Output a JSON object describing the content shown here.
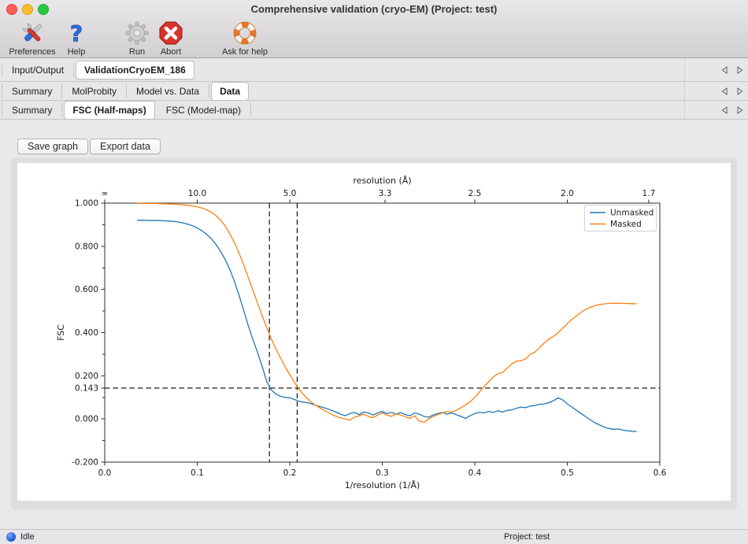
{
  "window": {
    "title": "Comprehensive validation (cryo-EM) (Project: test)"
  },
  "toolbar": {
    "preferences": "Preferences",
    "help": "Help",
    "run": "Run",
    "abort": "Abort",
    "ask_for_help": "Ask for help"
  },
  "tab_rows": [
    {
      "tabs": [
        {
          "label": "Input/Output",
          "selected": false
        },
        {
          "label": "ValidationCryoEM_186",
          "selected": true
        }
      ]
    },
    {
      "tabs": [
        {
          "label": "Summary",
          "selected": false
        },
        {
          "label": "MolProbity",
          "selected": false
        },
        {
          "label": "Model vs. Data",
          "selected": false
        },
        {
          "label": "Data",
          "selected": true
        }
      ]
    },
    {
      "tabs": [
        {
          "label": "Summary",
          "selected": false
        },
        {
          "label": "FSC (Half-maps)",
          "selected": true
        },
        {
          "label": "FSC (Model-map)",
          "selected": false
        }
      ]
    }
  ],
  "actions": {
    "save_graph": "Save graph",
    "export_data": "Export data"
  },
  "statusbar": {
    "status": "Idle",
    "project": "Project: test"
  },
  "chart_data": {
    "type": "line",
    "xlabel": "1/resolution (1/Å)",
    "ylabel": "FSC",
    "top_axis_label": "resolution (Å)",
    "xlim": [
      0.0,
      0.6
    ],
    "ylim": [
      -0.2,
      1.0
    ],
    "x_ticks": {
      "values": [
        0.0,
        0.1,
        0.2,
        0.3,
        0.4,
        0.5,
        0.6
      ],
      "labels": [
        "0.0",
        "0.1",
        "0.2",
        "0.3",
        "0.4",
        "0.5",
        "0.6"
      ]
    },
    "y_ticks": {
      "values": [
        1.0,
        0.8,
        0.6,
        0.4,
        0.2,
        0.143,
        0.0,
        -0.2
      ],
      "labels": [
        "1.000",
        "0.800",
        "0.600",
        "0.400",
        "0.200",
        "0.143",
        "0.000",
        "-0.200"
      ]
    },
    "y_minor_ticks": [
      0.9,
      0.7,
      0.5,
      0.3,
      0.1,
      -0.1
    ],
    "top_ticks": {
      "values": [
        0.0,
        0.1,
        0.2,
        0.303,
        0.4,
        0.5,
        0.588
      ],
      "labels": [
        "∞",
        "10.0",
        "5.0",
        "3.3",
        "2.5",
        "2.0",
        "1.7"
      ]
    },
    "threshold_fsc": 0.143,
    "threshold_vlines_x": [
      0.178,
      0.208
    ],
    "grid": false,
    "legend_position": "top-right",
    "x_start": 0.035,
    "x_step": 0.005,
    "series": [
      {
        "name": "Unmasked",
        "color": "#1f77b4",
        "y": [
          0.92,
          0.921,
          0.92,
          0.919,
          0.92,
          0.919,
          0.918,
          0.917,
          0.915,
          0.912,
          0.908,
          0.902,
          0.895,
          0.885,
          0.872,
          0.856,
          0.836,
          0.81,
          0.778,
          0.74,
          0.695,
          0.64,
          0.575,
          0.505,
          0.435,
          0.37,
          0.31,
          0.245,
          0.175,
          0.135,
          0.115,
          0.105,
          0.1,
          0.098,
          0.09,
          0.082,
          0.078,
          0.075,
          0.068,
          0.06,
          0.055,
          0.048,
          0.04,
          0.032,
          0.022,
          0.015,
          0.025,
          0.03,
          0.02,
          0.032,
          0.028,
          0.018,
          0.028,
          0.035,
          0.025,
          0.03,
          0.022,
          0.03,
          0.02,
          0.015,
          0.028,
          0.022,
          0.012,
          0.008,
          0.018,
          0.025,
          0.03,
          0.022,
          0.028,
          0.02,
          0.012,
          0.002,
          0.015,
          0.025,
          0.03,
          0.028,
          0.035,
          0.03,
          0.038,
          0.032,
          0.04,
          0.042,
          0.05,
          0.055,
          0.052,
          0.06,
          0.062,
          0.068,
          0.07,
          0.075,
          0.085,
          0.098,
          0.088,
          0.07,
          0.055,
          0.04,
          0.025,
          0.01,
          -0.005,
          -0.018,
          -0.028,
          -0.038,
          -0.044,
          -0.048,
          -0.046,
          -0.052,
          -0.055,
          -0.057,
          -0.058
        ]
      },
      {
        "name": "Masked",
        "color": "#ff7f0e",
        "y": [
          0.999,
          0.999,
          0.998,
          0.998,
          0.998,
          0.997,
          0.997,
          0.996,
          0.995,
          0.994,
          0.992,
          0.99,
          0.987,
          0.983,
          0.977,
          0.969,
          0.958,
          0.943,
          0.922,
          0.895,
          0.86,
          0.818,
          0.77,
          0.716,
          0.658,
          0.598,
          0.538,
          0.48,
          0.424,
          0.372,
          0.325,
          0.282,
          0.242,
          0.205,
          0.17,
          0.138,
          0.112,
          0.09,
          0.072,
          0.058,
          0.045,
          0.033,
          0.022,
          0.012,
          0.005,
          0.0,
          -0.005,
          0.008,
          0.015,
          0.022,
          0.012,
          0.006,
          0.018,
          0.028,
          0.018,
          0.012,
          0.025,
          0.018,
          0.01,
          0.002,
          0.015,
          -0.01,
          -0.015,
          0.0,
          0.012,
          0.02,
          0.028,
          0.035,
          0.03,
          0.04,
          0.052,
          0.065,
          0.08,
          0.1,
          0.125,
          0.15,
          0.172,
          0.195,
          0.21,
          0.215,
          0.235,
          0.255,
          0.268,
          0.27,
          0.278,
          0.3,
          0.31,
          0.33,
          0.352,
          0.37,
          0.382,
          0.4,
          0.42,
          0.442,
          0.462,
          0.478,
          0.495,
          0.508,
          0.518,
          0.525,
          0.53,
          0.533,
          0.535,
          0.536,
          0.536,
          0.535,
          0.535,
          0.534,
          0.534
        ]
      }
    ]
  }
}
